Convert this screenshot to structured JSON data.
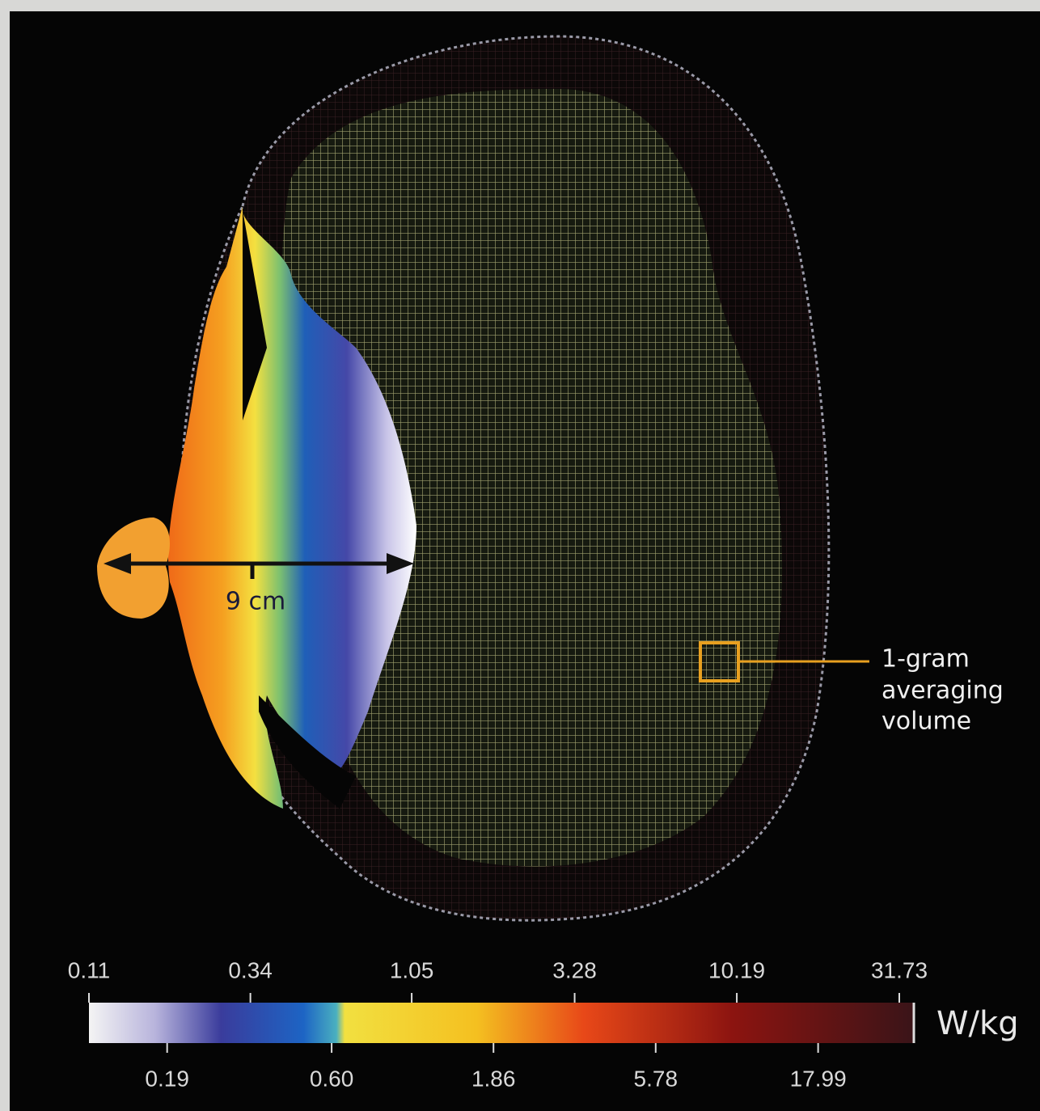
{
  "annotations": {
    "distance": "9 cm",
    "volume_label": [
      "1-gram",
      "averaging",
      "volume"
    ]
  },
  "colorbar": {
    "unit": "W/kg",
    "scale": "log",
    "lim": [
      0.11,
      31.73
    ],
    "ticks_top": [
      0.11,
      0.34,
      1.05,
      3.28,
      10.19,
      31.73
    ],
    "ticks_bottom": [
      0.19,
      {
        "value": 0.6,
        "label": "0.60"
      },
      1.86,
      5.78,
      17.99
    ]
  }
}
